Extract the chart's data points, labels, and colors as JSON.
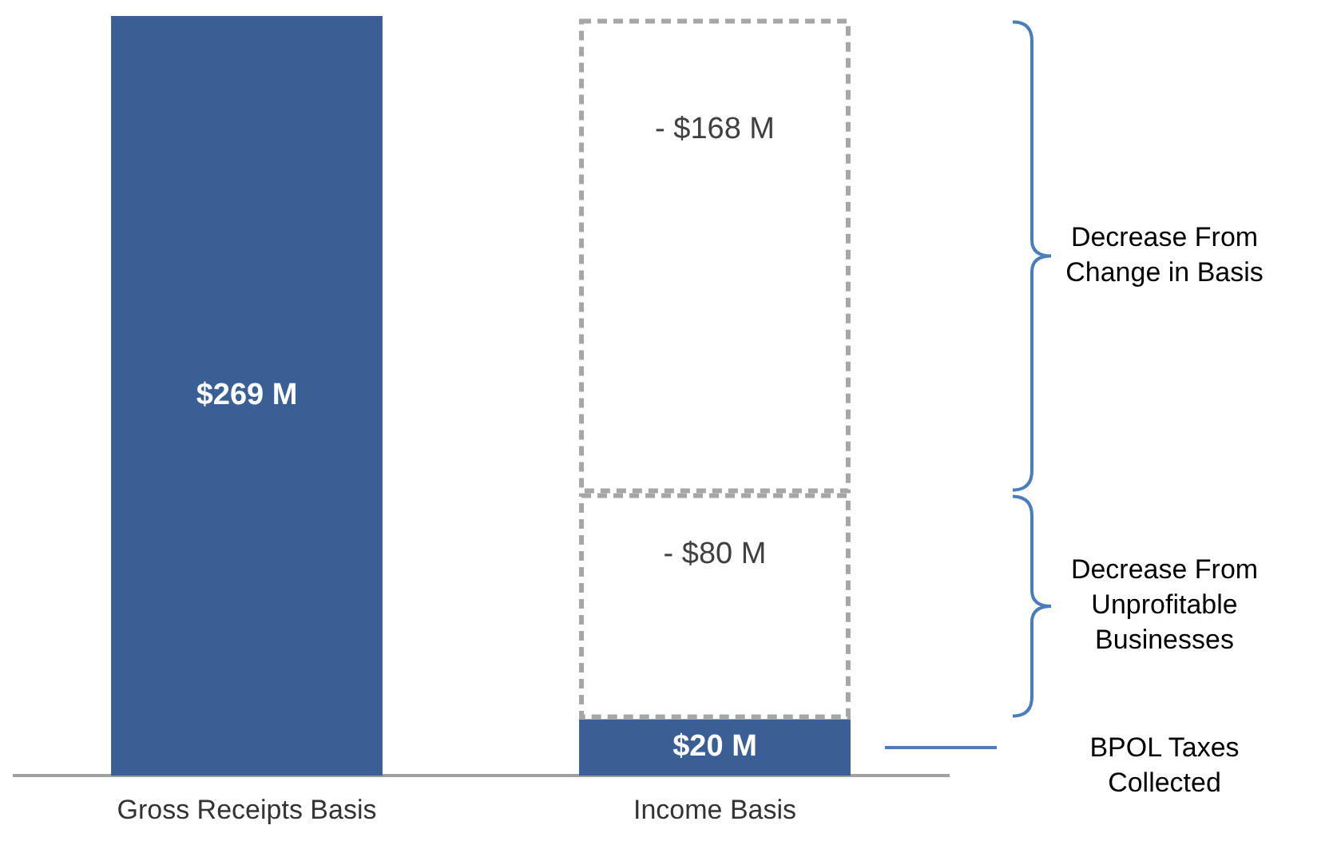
{
  "chart_data": {
    "type": "bar",
    "stacked": true,
    "categories": [
      "Gross Receipts Basis",
      "Income Basis"
    ],
    "series": [
      {
        "color": "#3a5f94",
        "values": [
          269,
          20
        ],
        "value_labels": [
          "$269 M",
          "$20 M"
        ]
      },
      {
        "color": "#a6a6a6",
        "line_style": "dashed",
        "values": [
          null,
          80
        ]
      },
      {
        "color": "#a6a6a6",
        "line_style": "dashed",
        "values": [
          null,
          168
        ]
      }
    ],
    "annotations": [
      "BPOL Taxes Collected",
      "Decrease From Unprofitable Businesses",
      "Decrease From Change in Basis",
      "- $80 M",
      "- $168 M"
    ],
    "legend": false,
    "grid": false
  }
}
